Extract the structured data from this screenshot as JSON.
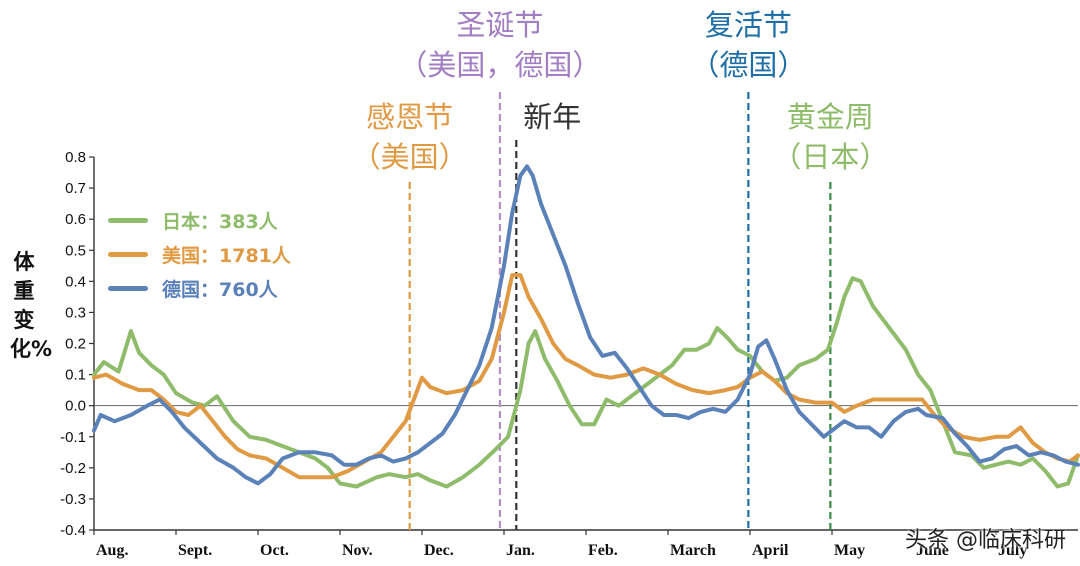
{
  "watermark": "头条 @临床科研",
  "chart_data": {
    "type": "line",
    "ylabel": "体重变化%",
    "ylim": [
      -0.4,
      0.8
    ],
    "yticks": [
      "-0.4",
      "-0.3",
      "-0.2",
      "-0.1",
      "0.0",
      "0.1",
      "0.2",
      "0.3",
      "0.4",
      "0.5",
      "0.6",
      "0.7",
      "0.8"
    ],
    "x_axis": {
      "range_months": [
        0,
        12
      ]
    },
    "xticks": [
      {
        "label": "Aug.",
        "x": 0
      },
      {
        "label": "Sept.",
        "x": 1
      },
      {
        "label": "Oct.",
        "x": 2
      },
      {
        "label": "Nov.",
        "x": 3
      },
      {
        "label": "Dec.",
        "x": 4
      },
      {
        "label": "Jan.",
        "x": 5
      },
      {
        "label": "Feb.",
        "x": 6
      },
      {
        "label": "March",
        "x": 7
      },
      {
        "label": "April",
        "x": 8
      },
      {
        "label": "May",
        "x": 9
      },
      {
        "label": "June",
        "x": 10
      },
      {
        "label": "July",
        "x": 11
      }
    ],
    "zero_line": true,
    "legend_position": "top-left",
    "series": [
      {
        "name": "日本：383人",
        "color": "#8fbc6a",
        "points": [
          [
            0,
            0.1
          ],
          [
            0.12,
            0.14
          ],
          [
            0.3,
            0.11
          ],
          [
            0.45,
            0.24
          ],
          [
            0.55,
            0.17
          ],
          [
            0.7,
            0.13
          ],
          [
            0.85,
            0.1
          ],
          [
            1.0,
            0.04
          ],
          [
            1.2,
            0.01
          ],
          [
            1.35,
            0.0
          ],
          [
            1.5,
            0.03
          ],
          [
            1.7,
            -0.05
          ],
          [
            1.9,
            -0.1
          ],
          [
            2.1,
            -0.11
          ],
          [
            2.3,
            -0.13
          ],
          [
            2.5,
            -0.15
          ],
          [
            2.7,
            -0.17
          ],
          [
            2.85,
            -0.2
          ],
          [
            3.0,
            -0.25
          ],
          [
            3.2,
            -0.26
          ],
          [
            3.45,
            -0.23
          ],
          [
            3.6,
            -0.22
          ],
          [
            3.8,
            -0.23
          ],
          [
            3.95,
            -0.22
          ],
          [
            4.1,
            -0.24
          ],
          [
            4.3,
            -0.26
          ],
          [
            4.5,
            -0.23
          ],
          [
            4.7,
            -0.19
          ],
          [
            4.9,
            -0.14
          ],
          [
            5.05,
            -0.1
          ],
          [
            5.2,
            0.05
          ],
          [
            5.3,
            0.2
          ],
          [
            5.38,
            0.24
          ],
          [
            5.5,
            0.15
          ],
          [
            5.65,
            0.08
          ],
          [
            5.8,
            0.0
          ],
          [
            5.95,
            -0.06
          ],
          [
            6.1,
            -0.06
          ],
          [
            6.25,
            0.02
          ],
          [
            6.4,
            0.0
          ],
          [
            6.55,
            0.03
          ],
          [
            6.7,
            0.06
          ],
          [
            6.9,
            0.1
          ],
          [
            7.05,
            0.13
          ],
          [
            7.2,
            0.18
          ],
          [
            7.35,
            0.18
          ],
          [
            7.5,
            0.2
          ],
          [
            7.6,
            0.25
          ],
          [
            7.72,
            0.22
          ],
          [
            7.85,
            0.18
          ],
          [
            8.0,
            0.16
          ],
          [
            8.15,
            0.11
          ],
          [
            8.3,
            0.08
          ],
          [
            8.45,
            0.09
          ],
          [
            8.6,
            0.13
          ],
          [
            8.8,
            0.15
          ],
          [
            8.95,
            0.18
          ],
          [
            9.05,
            0.26
          ],
          [
            9.15,
            0.35
          ],
          [
            9.25,
            0.41
          ],
          [
            9.35,
            0.4
          ],
          [
            9.5,
            0.32
          ],
          [
            9.7,
            0.25
          ],
          [
            9.9,
            0.18
          ],
          [
            10.05,
            0.1
          ],
          [
            10.2,
            0.05
          ],
          [
            10.35,
            -0.05
          ],
          [
            10.5,
            -0.15
          ],
          [
            10.7,
            -0.16
          ],
          [
            10.85,
            -0.2
          ],
          [
            11.0,
            -0.19
          ],
          [
            11.15,
            -0.18
          ],
          [
            11.3,
            -0.19
          ],
          [
            11.45,
            -0.17
          ],
          [
            11.6,
            -0.21
          ],
          [
            11.75,
            -0.26
          ],
          [
            11.88,
            -0.25
          ],
          [
            12.0,
            -0.16
          ]
        ]
      },
      {
        "name": "美国：1781人",
        "color": "#e09a44",
        "points": [
          [
            0,
            0.09
          ],
          [
            0.15,
            0.1
          ],
          [
            0.35,
            0.07
          ],
          [
            0.55,
            0.05
          ],
          [
            0.7,
            0.05
          ],
          [
            0.85,
            0.02
          ],
          [
            1.0,
            -0.02
          ],
          [
            1.15,
            -0.03
          ],
          [
            1.3,
            0.0
          ],
          [
            1.45,
            -0.05
          ],
          [
            1.6,
            -0.1
          ],
          [
            1.75,
            -0.14
          ],
          [
            1.9,
            -0.16
          ],
          [
            2.1,
            -0.17
          ],
          [
            2.3,
            -0.2
          ],
          [
            2.5,
            -0.23
          ],
          [
            2.7,
            -0.23
          ],
          [
            2.9,
            -0.23
          ],
          [
            3.1,
            -0.21
          ],
          [
            3.3,
            -0.18
          ],
          [
            3.5,
            -0.15
          ],
          [
            3.65,
            -0.1
          ],
          [
            3.8,
            -0.05
          ],
          [
            3.9,
            0.02
          ],
          [
            4.0,
            0.09
          ],
          [
            4.1,
            0.06
          ],
          [
            4.3,
            0.04
          ],
          [
            4.5,
            0.05
          ],
          [
            4.7,
            0.08
          ],
          [
            4.85,
            0.15
          ],
          [
            5.0,
            0.3
          ],
          [
            5.1,
            0.42
          ],
          [
            5.2,
            0.42
          ],
          [
            5.3,
            0.35
          ],
          [
            5.45,
            0.28
          ],
          [
            5.6,
            0.2
          ],
          [
            5.75,
            0.15
          ],
          [
            5.9,
            0.13
          ],
          [
            6.1,
            0.1
          ],
          [
            6.3,
            0.09
          ],
          [
            6.5,
            0.1
          ],
          [
            6.7,
            0.12
          ],
          [
            6.9,
            0.1
          ],
          [
            7.1,
            0.07
          ],
          [
            7.3,
            0.05
          ],
          [
            7.5,
            0.04
          ],
          [
            7.7,
            0.05
          ],
          [
            7.85,
            0.06
          ],
          [
            8.0,
            0.09
          ],
          [
            8.15,
            0.11
          ],
          [
            8.3,
            0.08
          ],
          [
            8.45,
            0.04
          ],
          [
            8.6,
            0.02
          ],
          [
            8.8,
            0.01
          ],
          [
            9.0,
            0.01
          ],
          [
            9.15,
            -0.02
          ],
          [
            9.3,
            0.0
          ],
          [
            9.5,
            0.02
          ],
          [
            9.7,
            0.02
          ],
          [
            9.9,
            0.02
          ],
          [
            10.1,
            0.02
          ],
          [
            10.25,
            -0.03
          ],
          [
            10.4,
            -0.07
          ],
          [
            10.6,
            -0.1
          ],
          [
            10.8,
            -0.11
          ],
          [
            11.0,
            -0.1
          ],
          [
            11.15,
            -0.1
          ],
          [
            11.3,
            -0.07
          ],
          [
            11.45,
            -0.12
          ],
          [
            11.6,
            -0.15
          ],
          [
            11.75,
            -0.17
          ],
          [
            11.9,
            -0.18
          ],
          [
            12.0,
            -0.16
          ]
        ]
      },
      {
        "name": "德国：760人",
        "color": "#5b82b8",
        "points": [
          [
            0,
            -0.08
          ],
          [
            0.08,
            -0.03
          ],
          [
            0.25,
            -0.05
          ],
          [
            0.45,
            -0.03
          ],
          [
            0.65,
            0.0
          ],
          [
            0.8,
            0.02
          ],
          [
            0.95,
            -0.02
          ],
          [
            1.1,
            -0.07
          ],
          [
            1.3,
            -0.12
          ],
          [
            1.5,
            -0.17
          ],
          [
            1.7,
            -0.2
          ],
          [
            1.85,
            -0.23
          ],
          [
            2.0,
            -0.25
          ],
          [
            2.15,
            -0.22
          ],
          [
            2.3,
            -0.17
          ],
          [
            2.5,
            -0.15
          ],
          [
            2.7,
            -0.15
          ],
          [
            2.9,
            -0.16
          ],
          [
            3.05,
            -0.19
          ],
          [
            3.2,
            -0.19
          ],
          [
            3.35,
            -0.17
          ],
          [
            3.5,
            -0.16
          ],
          [
            3.65,
            -0.18
          ],
          [
            3.8,
            -0.17
          ],
          [
            3.95,
            -0.15
          ],
          [
            4.1,
            -0.12
          ],
          [
            4.25,
            -0.09
          ],
          [
            4.4,
            -0.03
          ],
          [
            4.55,
            0.05
          ],
          [
            4.7,
            0.13
          ],
          [
            4.85,
            0.25
          ],
          [
            5.0,
            0.45
          ],
          [
            5.1,
            0.62
          ],
          [
            5.2,
            0.74
          ],
          [
            5.28,
            0.77
          ],
          [
            5.35,
            0.74
          ],
          [
            5.45,
            0.65
          ],
          [
            5.6,
            0.55
          ],
          [
            5.75,
            0.45
          ],
          [
            5.9,
            0.33
          ],
          [
            6.05,
            0.22
          ],
          [
            6.2,
            0.16
          ],
          [
            6.35,
            0.17
          ],
          [
            6.5,
            0.12
          ],
          [
            6.65,
            0.06
          ],
          [
            6.8,
            0.0
          ],
          [
            6.95,
            -0.03
          ],
          [
            7.1,
            -0.03
          ],
          [
            7.25,
            -0.04
          ],
          [
            7.4,
            -0.02
          ],
          [
            7.55,
            -0.01
          ],
          [
            7.7,
            -0.02
          ],
          [
            7.85,
            0.02
          ],
          [
            8.0,
            0.1
          ],
          [
            8.1,
            0.19
          ],
          [
            8.2,
            0.21
          ],
          [
            8.3,
            0.15
          ],
          [
            8.45,
            0.05
          ],
          [
            8.6,
            -0.02
          ],
          [
            8.75,
            -0.06
          ],
          [
            8.9,
            -0.1
          ],
          [
            9.0,
            -0.08
          ],
          [
            9.15,
            -0.05
          ],
          [
            9.3,
            -0.07
          ],
          [
            9.45,
            -0.07
          ],
          [
            9.6,
            -0.1
          ],
          [
            9.75,
            -0.05
          ],
          [
            9.9,
            -0.02
          ],
          [
            10.05,
            -0.01
          ],
          [
            10.15,
            -0.03
          ],
          [
            10.35,
            -0.04
          ],
          [
            10.5,
            -0.09
          ],
          [
            10.65,
            -0.13
          ],
          [
            10.8,
            -0.18
          ],
          [
            10.95,
            -0.17
          ],
          [
            11.1,
            -0.14
          ],
          [
            11.25,
            -0.13
          ],
          [
            11.4,
            -0.16
          ],
          [
            11.55,
            -0.15
          ],
          [
            11.7,
            -0.16
          ],
          [
            11.85,
            -0.18
          ],
          [
            12.0,
            -0.19
          ]
        ]
      }
    ],
    "annotations": [
      {
        "id": "thanksgiving",
        "lines": [
          "感恩节",
          "（美国）"
        ],
        "x": 3.85,
        "color": "#e09a44",
        "text_color": "#e09a44"
      },
      {
        "id": "christmas",
        "lines": [
          "圣诞节",
          "（美国，德国）"
        ],
        "x": 4.95,
        "color": "#b48fc9",
        "text_color": "#a27ec2"
      },
      {
        "id": "new-year",
        "lines": [
          "新年"
        ],
        "x": 5.15,
        "color": "#333333",
        "text_color": "#333333"
      },
      {
        "id": "easter",
        "lines": [
          "复活节",
          "（德国）"
        ],
        "x": 7.98,
        "color": "#1f6fa6",
        "text_color": "#1f6fa6"
      },
      {
        "id": "golden-week",
        "lines": [
          "黄金周",
          "（日本）"
        ],
        "x": 8.98,
        "color": "#3a8a4a",
        "text_color": "#8fbc6a"
      }
    ]
  }
}
